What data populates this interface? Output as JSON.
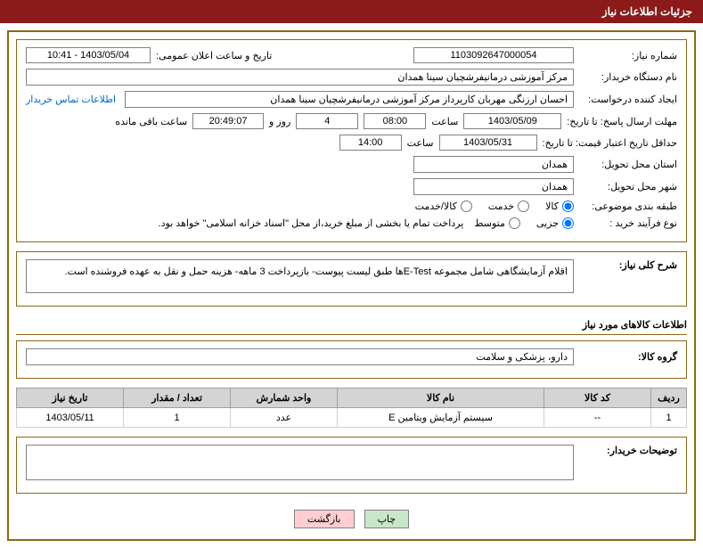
{
  "header": {
    "title": "جزئیات اطلاعات نیاز"
  },
  "form": {
    "need_number_label": "شماره نیاز:",
    "need_number": "1103092647000054",
    "announce_label": "تاریخ و ساعت اعلان عمومی:",
    "announce_value": "1403/05/04 - 10:41",
    "buyer_org_label": "نام دستگاه خریدار:",
    "buyer_org": "مرکز آموزشی درمانیفرشچیان سینا همدان",
    "requester_label": "ایجاد کننده درخواست:",
    "requester": "احسان ارزنگی مهربان کارپرداز مرکز آموزشی درمانیفرشچیان سینا همدان",
    "contact_link": "اطلاعات تماس خریدار",
    "deadline_label": "مهلت ارسال پاسخ: تا تاریخ:",
    "deadline_date": "1403/05/09",
    "time_label": "ساعت",
    "deadline_time": "08:00",
    "days_field": "4",
    "days_and": "روز و",
    "countdown": "20:49:07",
    "remaining_label": "ساعت باقی مانده",
    "validity_label": "حداقل تاریخ اعتبار قیمت: تا تاریخ:",
    "validity_date": "1403/05/31",
    "validity_time": "14:00",
    "province_label": "استان محل تحویل:",
    "province": "همدان",
    "city_label": "شهر محل تحویل:",
    "city": "همدان",
    "category_label": "طبقه بندی موضوعی:",
    "cat_goods": "کالا",
    "cat_service": "خدمت",
    "cat_both": "کالا/خدمت",
    "process_label": "نوع فرآیند خرید :",
    "proc_partial": "جزیی",
    "proc_medium": "متوسط",
    "payment_note": "پرداخت تمام یا بخشی از مبلغ خرید،از محل \"اسناد خزانه اسلامی\" خواهد بود."
  },
  "summary": {
    "label": "شرح کلی نیاز:",
    "text": "اقلام آزمایشگاهی شامل مجموعه E-Testها طبق لیست پیوست- بازپرداخت 3 ماهه- هزینه حمل و نقل به عهده فروشنده است."
  },
  "goods": {
    "section_title": "اطلاعات کالاهای مورد نیاز",
    "group_label": "گروه کالا:",
    "group_value": "دارو، پزشکی و سلامت"
  },
  "table": {
    "headers": {
      "row": "ردیف",
      "code": "کد کالا",
      "name": "نام کالا",
      "unit": "واحد شمارش",
      "qty": "تعداد / مقدار",
      "date": "تاریخ نیاز"
    },
    "rows": [
      {
        "row": "1",
        "code": "--",
        "name": "سیستم آزمایش ویتامین E",
        "unit": "عدد",
        "qty": "1",
        "date": "1403/05/11"
      }
    ]
  },
  "notes": {
    "label": "توضیحات خریدار:",
    "value": ""
  },
  "buttons": {
    "print": "چاپ",
    "back": "بازگشت"
  }
}
